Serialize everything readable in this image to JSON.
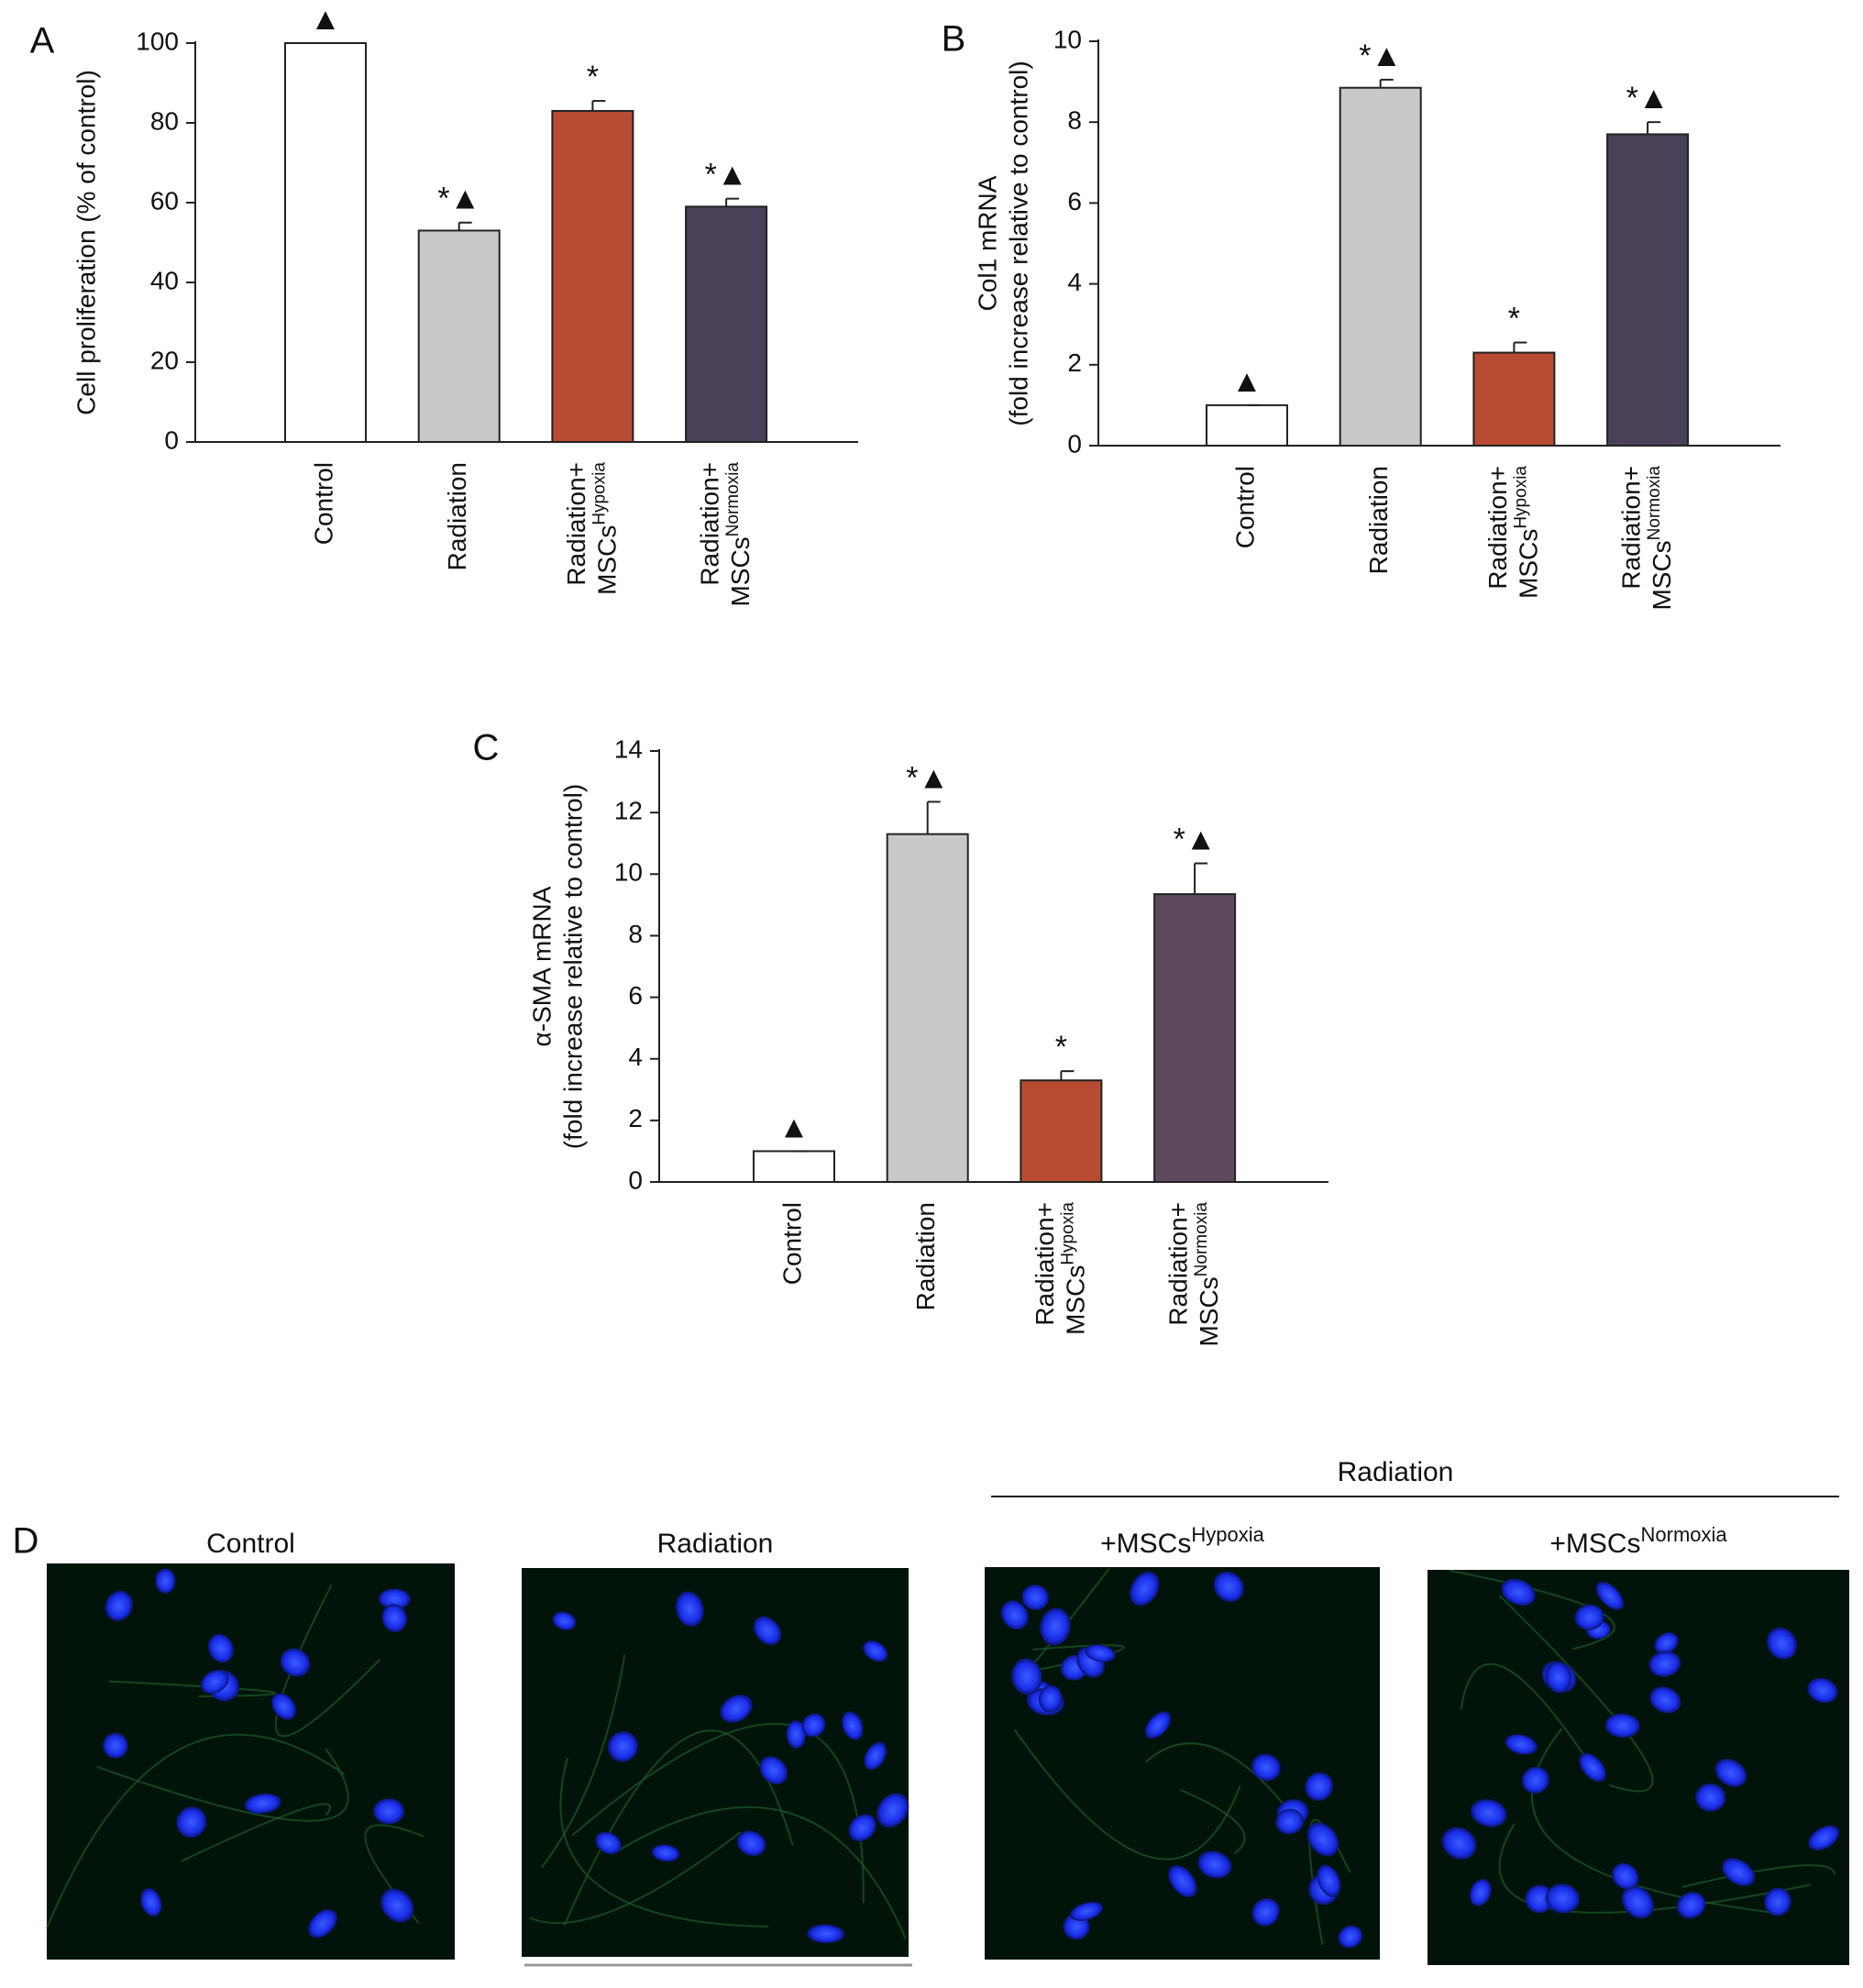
{
  "chart_data": [
    {
      "type": "bar",
      "panel_label": "A",
      "ylabel": [
        "Cell proliferation (% of control)"
      ],
      "categories": [
        [
          "Control"
        ],
        [
          "Radiation"
        ],
        [
          "Radiation+",
          "MSCs",
          "Hypoxia"
        ],
        [
          "Radiation+",
          "MSCs",
          "Normoxia"
        ]
      ],
      "values": [
        100,
        53,
        83,
        59
      ],
      "errors": [
        0,
        2,
        2.5,
        2
      ],
      "annotations": [
        "▲",
        "*▲",
        "*",
        "*▲"
      ],
      "colors": [
        "#ffffff",
        "#c8c8c8",
        "#b84c32",
        "#4a4058"
      ],
      "ylim": [
        0,
        100
      ],
      "yticks": [
        0,
        20,
        40,
        60,
        80,
        100
      ]
    },
    {
      "type": "bar",
      "panel_label": "B",
      "ylabel": [
        "Col1 mRNA",
        "(fold increase relative to control)"
      ],
      "categories": [
        [
          "Control"
        ],
        [
          "Radiation"
        ],
        [
          "Radiation+",
          "MSCs",
          "Hypoxia"
        ],
        [
          "Radiation+",
          "MSCs",
          "Normoxia"
        ]
      ],
      "values": [
        1,
        8.85,
        2.3,
        7.7
      ],
      "errors": [
        0,
        0.2,
        0.25,
        0.3
      ],
      "annotations": [
        "▲",
        "*▲",
        "*",
        "*▲"
      ],
      "colors": [
        "#ffffff",
        "#c8c8c8",
        "#b84c32",
        "#4a4058"
      ],
      "ylim": [
        0,
        10
      ],
      "yticks": [
        0,
        2,
        4,
        6,
        8,
        10
      ]
    },
    {
      "type": "bar",
      "panel_label": "C",
      "ylabel": [
        "α-SMA mRNA",
        "(fold increase relative to control)"
      ],
      "categories": [
        [
          "Control"
        ],
        [
          "Radiation"
        ],
        [
          "Radiation+",
          "MSCs",
          "Hypoxia"
        ],
        [
          "Radiation+",
          "MSCs",
          "Normoxia"
        ]
      ],
      "values": [
        1,
        11.3,
        3.3,
        9.35
      ],
      "errors": [
        0,
        1.05,
        0.3,
        1.0
      ],
      "annotations": [
        "▲",
        "*▲",
        "*",
        "*▲"
      ],
      "colors": [
        "#ffffff",
        "#c8c8c8",
        "#b84c32",
        "#5e4a5c"
      ],
      "ylim": [
        0,
        14
      ],
      "yticks": [
        0,
        2,
        4,
        6,
        8,
        10,
        12,
        14
      ]
    }
  ],
  "panel_d": {
    "label": "D",
    "group_label": "Radiation",
    "images": [
      {
        "title": "Control"
      },
      {
        "title": "Radiation"
      },
      {
        "title": "+MSCs",
        "sup": "Hypoxia"
      },
      {
        "title": "+MSCs",
        "sup": "Normoxia"
      }
    ]
  }
}
